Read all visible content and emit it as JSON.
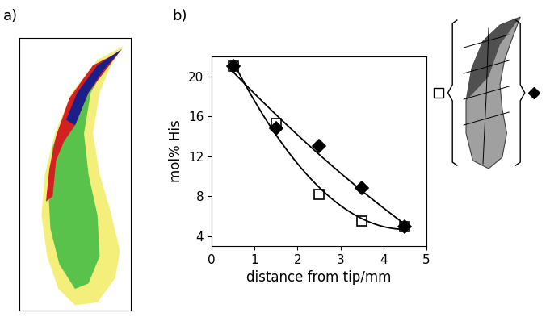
{
  "panel_labels": [
    "a)",
    "b)"
  ],
  "chart_data": {
    "type": "scatter",
    "x_label": "distance from tip/mm",
    "y_label": "mol% His",
    "x": [
      0.5,
      1.5,
      2.5,
      3.5,
      4.5
    ],
    "series": [
      {
        "color": "#000000",
        "marker": "open square",
        "line_style": "solid",
        "values": [
          21.0,
          15.3,
          8.2,
          5.5,
          4.9
        ]
      },
      {
        "color": "#000000",
        "marker": "diamond",
        "line_style": "solid",
        "values": [
          21.0,
          14.8,
          13.0,
          8.8,
          4.9
        ]
      }
    ],
    "xlim": [
      0,
      5
    ],
    "xticks": [
      0,
      1,
      2,
      3,
      4,
      5
    ],
    "ylim": [
      3,
      22
    ],
    "yticks": [
      4,
      8,
      12,
      16,
      20
    ],
    "grid": false
  }
}
